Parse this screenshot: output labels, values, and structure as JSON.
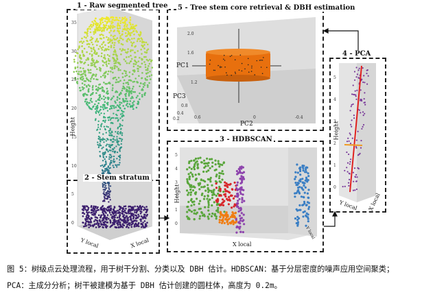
{
  "panels": {
    "p1": {
      "title": "1 - Raw segmented tree",
      "ylabel": "Height",
      "xlabel1": "Y local",
      "xlabel2": "X local",
      "yticks": [
        "35",
        "30",
        "25",
        "20",
        "15",
        "10",
        "5",
        "0"
      ]
    },
    "p2": {
      "title": "2 - Stem stratum"
    },
    "p3": {
      "title": "3 - HDBSCAN",
      "ylabel": "Height",
      "xlabel": "X local",
      "xlabel2": "Y local",
      "yticks": [
        "5",
        "4",
        "3",
        "2",
        "1",
        "0"
      ],
      "xticks": [
        "0",
        "6",
        "4",
        "2",
        "0"
      ]
    },
    "p4": {
      "title": "4 - PCA",
      "ylabel": "Height",
      "xlabel1": "Y local",
      "xlabel2": "X local",
      "yticks": [
        "5",
        "4",
        "3",
        "2",
        "1",
        "0"
      ],
      "xticks": [
        "4",
        "5",
        "4",
        "3",
        "5"
      ]
    },
    "p5": {
      "title": "5 - Tree stem core retrieval & DBH estimation",
      "axis_pc1": "PC1",
      "axis_pc2": "PC2",
      "axis_pc3": "PC3",
      "ticks": [
        "2.0",
        "1.6",
        "1.2",
        "0.8",
        "0.4",
        "0.2",
        "0.6",
        "0",
        "-0.4"
      ]
    }
  },
  "caption": {
    "line1": "图 5：树级点云处理流程，用于树干分割、分类以及 DBH 估计。HDBSCAN：基于分层密度的噪声应用空间聚类；",
    "line2": "PCA：主成分分析；树干被建模为基于 DBH 估计创建的圆柱体，高度为 0.2m。"
  },
  "colors": {
    "canopy_top": "#f2e928",
    "canopy_mid": "#3bb57a",
    "stem_blue": "#2c7f8e",
    "base_purple": "#3c1f6e",
    "cluster_green": "#5aa63c",
    "cluster_red": "#d8262b",
    "cluster_purple": "#8e44ad",
    "cluster_orange": "#f07c10",
    "cluster_blue": "#3b7fc4",
    "cylinder": "#e8700e",
    "pca_axis_red": "#e0201e",
    "pca_axis_orange": "#f09a20",
    "pca_points": "#7a3a9a"
  }
}
